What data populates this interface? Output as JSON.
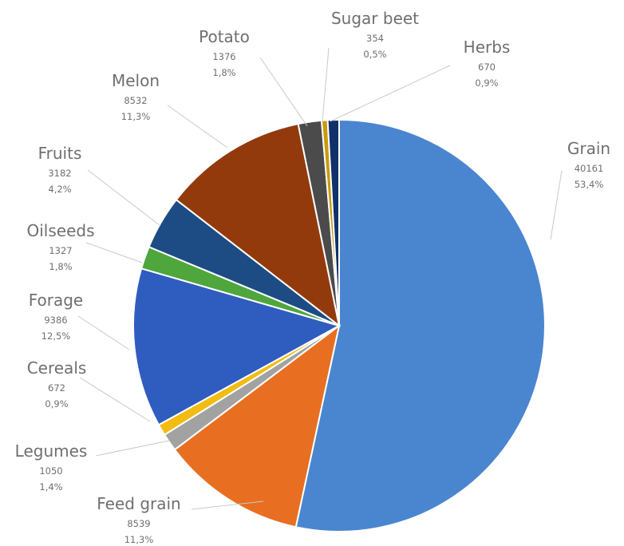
{
  "chart_data": {
    "type": "pie",
    "title": "",
    "slices": [
      {
        "name": "Grain",
        "value": 40161,
        "percent": "53,4%",
        "value_label": "40161",
        "color": "#4a86cf"
      },
      {
        "name": "Feed grain",
        "value": 8539,
        "percent": "11,3%",
        "value_label": "8539",
        "color": "#e86f21"
      },
      {
        "name": "Legumes",
        "value": 1050,
        "percent": "1,4%",
        "value_label": "1050",
        "color": "#a2a2a2"
      },
      {
        "name": "Cereals",
        "value": 672,
        "percent": "0,9%",
        "value_label": "672",
        "color": "#f2bc13"
      },
      {
        "name": "Forage",
        "value": 9386,
        "percent": "12,5%",
        "value_label": "9386",
        "color": "#2f5cbf"
      },
      {
        "name": "Oilseeds",
        "value": 1327,
        "percent": "1,8%",
        "value_label": "1327",
        "color": "#4ea63c"
      },
      {
        "name": "Fruits",
        "value": 3182,
        "percent": "4,2%",
        "value_label": "3182",
        "color": "#1d4c84"
      },
      {
        "name": "Melon",
        "value": 8532,
        "percent": "11,3%",
        "value_label": "8532",
        "color": "#933a0c"
      },
      {
        "name": "Potato",
        "value": 1376,
        "percent": "1,8%",
        "value_label": "1376",
        "color": "#4b4b4b"
      },
      {
        "name": "Sugar beet",
        "value": 354,
        "percent": "0,5%",
        "value_label": "354",
        "color": "#c99a0d"
      },
      {
        "name": "Herbs",
        "value": 670,
        "percent": "0,9%",
        "value_label": "670",
        "color": "#12306a"
      }
    ]
  }
}
